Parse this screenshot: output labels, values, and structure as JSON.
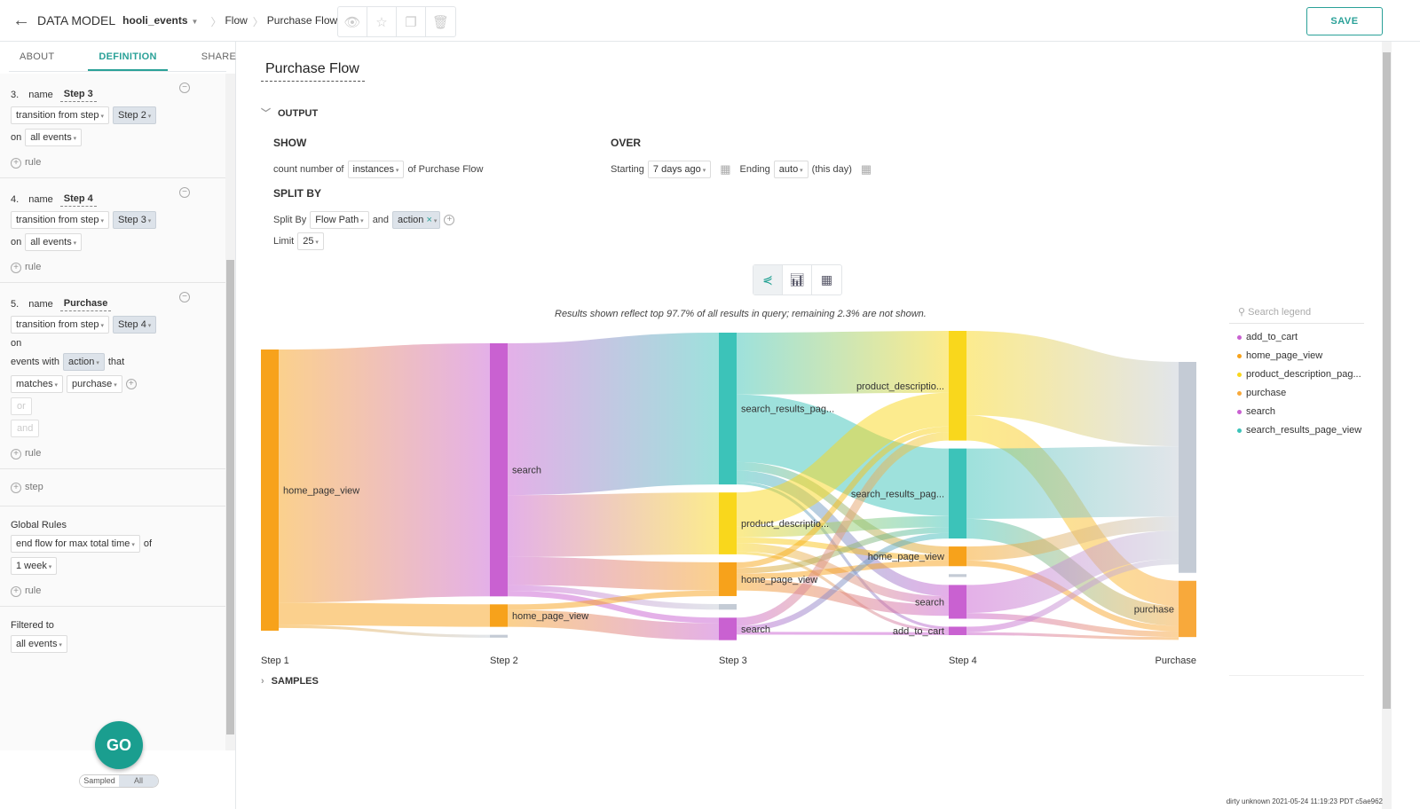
{
  "header": {
    "back": "←",
    "data_model": "DATA MODEL",
    "dataset": "hooli_events",
    "crumbs": [
      "Flow",
      "Purchase Flow"
    ],
    "tool_icons": [
      "eye-icon",
      "star-icon",
      "copy-icon",
      "trash-icon"
    ],
    "save": "SAVE"
  },
  "left": {
    "tabs": [
      "ABOUT",
      "DEFINITION",
      "SHARE"
    ],
    "steps": [
      {
        "num": "3.",
        "name_label": "name",
        "name": "Step 3",
        "trans": "transition from step",
        "from": "Step 2",
        "on": "on",
        "events": "all events",
        "rule": "rule"
      },
      {
        "num": "4.",
        "name_label": "name",
        "name": "Step 4",
        "trans": "transition from step",
        "from": "Step 3",
        "on": "on",
        "events": "all events",
        "rule": "rule"
      },
      {
        "num": "5.",
        "name_label": "name",
        "name": "Purchase",
        "trans": "transition from step",
        "from": "Step 4",
        "on": "on",
        "events_with": "events with",
        "prop": "action",
        "that": "that",
        "op": "matches",
        "val": "purchase",
        "or": "or",
        "and": "and",
        "rule": "rule"
      }
    ],
    "add_step": "step",
    "global_rules": "Global Rules",
    "end_flow": "end flow for max total time",
    "of": "of",
    "duration": "1 week",
    "g_rule": "rule",
    "filtered_to": "Filtered to",
    "filter": "all events",
    "go": "GO",
    "sampled": "Sampled",
    "all": "All"
  },
  "main": {
    "title": "Purchase Flow",
    "output": "OUTPUT",
    "show": "SHOW",
    "count_of": "count number of",
    "instances": "instances",
    "of_flow": "of Purchase Flow",
    "over": "OVER",
    "starting": "Starting",
    "start_val": "7 days ago",
    "ending": "Ending",
    "end_val": "auto",
    "this_day": "(this day)",
    "split_by_h": "SPLIT BY",
    "split_by": "Split By",
    "flow_path": "Flow Path",
    "and": "and",
    "action": "action",
    "limit": "Limit",
    "limit_val": "25",
    "note": "Results shown reflect top 97.7% of all results in query; remaining 2.3% are not shown.",
    "samples": "SAMPLES",
    "legend_search": "Search legend",
    "legend": [
      {
        "label": "add_to_cart",
        "color": "#c961d1"
      },
      {
        "label": "home_page_view",
        "color": "#f7a21b"
      },
      {
        "label": "product_description_pag...",
        "color": "#f9d71c"
      },
      {
        "label": "purchase",
        "color": "#f8a93b"
      },
      {
        "label": "search",
        "color": "#c961d1"
      },
      {
        "label": "search_results_page_view",
        "color": "#3cc3b9"
      }
    ],
    "footer": "dirty unknown 2021-05-24 11:19:23 PDT c5ae962"
  },
  "chart_data": {
    "type": "sankey",
    "columns": [
      "Step 1",
      "Step 2",
      "Step 3",
      "Step 4",
      "Purchase"
    ],
    "colors": {
      "home_page_view": "#f7a21b",
      "search": "#c961d1",
      "search_results_page_view": "#3cc3b9",
      "product_description_page_view": "#f9d71c",
      "add_to_cart": "#c961d1",
      "purchase": "#f8a93b",
      "other": "#c4cbd5"
    },
    "nodes": [
      {
        "id": "s1_hpv",
        "col": 0,
        "event": "home_page_view",
        "label": "home_page_view",
        "value": 100
      },
      {
        "id": "s2_search",
        "col": 1,
        "event": "search",
        "label": "search",
        "value": 90
      },
      {
        "id": "s2_hpv",
        "col": 1,
        "event": "home_page_view",
        "label": "home_page_view",
        "value": 8
      },
      {
        "id": "s2_other",
        "col": 1,
        "event": "other",
        "label": "",
        "value": 1
      },
      {
        "id": "s3_sr",
        "col": 2,
        "event": "search_results_page_view",
        "label": "search_results_pag...",
        "value": 54
      },
      {
        "id": "s3_pdp",
        "col": 2,
        "event": "product_description_page_view",
        "label": "product_descriptio...",
        "value": 22
      },
      {
        "id": "s3_hpv",
        "col": 2,
        "event": "home_page_view",
        "label": "home_page_view",
        "value": 12
      },
      {
        "id": "s3_other",
        "col": 2,
        "event": "other",
        "label": "",
        "value": 2
      },
      {
        "id": "s3_search",
        "col": 2,
        "event": "search",
        "label": "search",
        "value": 8
      },
      {
        "id": "s4_pdp",
        "col": 3,
        "event": "product_description_page_view",
        "label": "product_descriptio...",
        "value": 39
      },
      {
        "id": "s4_sr",
        "col": 3,
        "event": "search_results_page_view",
        "label": "search_results_pag...",
        "value": 32
      },
      {
        "id": "s4_hpv",
        "col": 3,
        "event": "home_page_view",
        "label": "home_page_view",
        "value": 7
      },
      {
        "id": "s4_other",
        "col": 3,
        "event": "other",
        "label": "",
        "value": 1
      },
      {
        "id": "s4_search",
        "col": 3,
        "event": "search",
        "label": "search",
        "value": 12
      },
      {
        "id": "s4_atc",
        "col": 3,
        "event": "add_to_cart",
        "label": "add_to_cart",
        "value": 3
      },
      {
        "id": "p_other",
        "col": 4,
        "event": "other",
        "label": "",
        "value": 75
      },
      {
        "id": "p_purchase",
        "col": 4,
        "event": "purchase",
        "label": "purchase",
        "value": 20
      }
    ],
    "links": [
      [
        "s1_hpv",
        "s2_search",
        90
      ],
      [
        "s1_hpv",
        "s2_hpv",
        8
      ],
      [
        "s1_hpv",
        "s2_other",
        1
      ],
      [
        "s2_search",
        "s3_sr",
        54
      ],
      [
        "s2_search",
        "s3_pdp",
        22
      ],
      [
        "s2_search",
        "s3_hpv",
        10
      ],
      [
        "s2_search",
        "s3_other",
        2
      ],
      [
        "s2_search",
        "s3_search",
        2
      ],
      [
        "s2_hpv",
        "s3_hpv",
        2
      ],
      [
        "s2_hpv",
        "s3_search",
        6
      ],
      [
        "s3_sr",
        "s4_pdp",
        22
      ],
      [
        "s3_sr",
        "s4_sr",
        24
      ],
      [
        "s3_sr",
        "s4_hpv",
        3
      ],
      [
        "s3_sr",
        "s4_search",
        4
      ],
      [
        "s3_sr",
        "s4_atc",
        1
      ],
      [
        "s3_pdp",
        "s4_pdp",
        12
      ],
      [
        "s3_pdp",
        "s4_sr",
        4
      ],
      [
        "s3_pdp",
        "s4_hpv",
        2
      ],
      [
        "s3_pdp",
        "s4_search",
        3
      ],
      [
        "s3_pdp",
        "s4_atc",
        1
      ],
      [
        "s3_hpv",
        "s4_pdp",
        2
      ],
      [
        "s3_hpv",
        "s4_sr",
        2
      ],
      [
        "s3_hpv",
        "s4_hpv",
        2
      ],
      [
        "s3_hpv",
        "s4_search",
        4
      ],
      [
        "s3_search",
        "s4_pdp",
        3
      ],
      [
        "s3_search",
        "s4_sr",
        2
      ],
      [
        "s3_search",
        "s4_atc",
        1
      ],
      [
        "s4_pdp",
        "p_other",
        30
      ],
      [
        "s4_pdp",
        "p_purchase",
        9
      ],
      [
        "s4_sr",
        "p_other",
        25
      ],
      [
        "s4_sr",
        "p_purchase",
        7
      ],
      [
        "s4_hpv",
        "p_other",
        5
      ],
      [
        "s4_hpv",
        "p_purchase",
        2
      ],
      [
        "s4_search",
        "p_other",
        10
      ],
      [
        "s4_search",
        "p_purchase",
        2
      ],
      [
        "s4_atc",
        "p_other",
        2
      ],
      [
        "s4_atc",
        "p_purchase",
        1
      ]
    ]
  }
}
